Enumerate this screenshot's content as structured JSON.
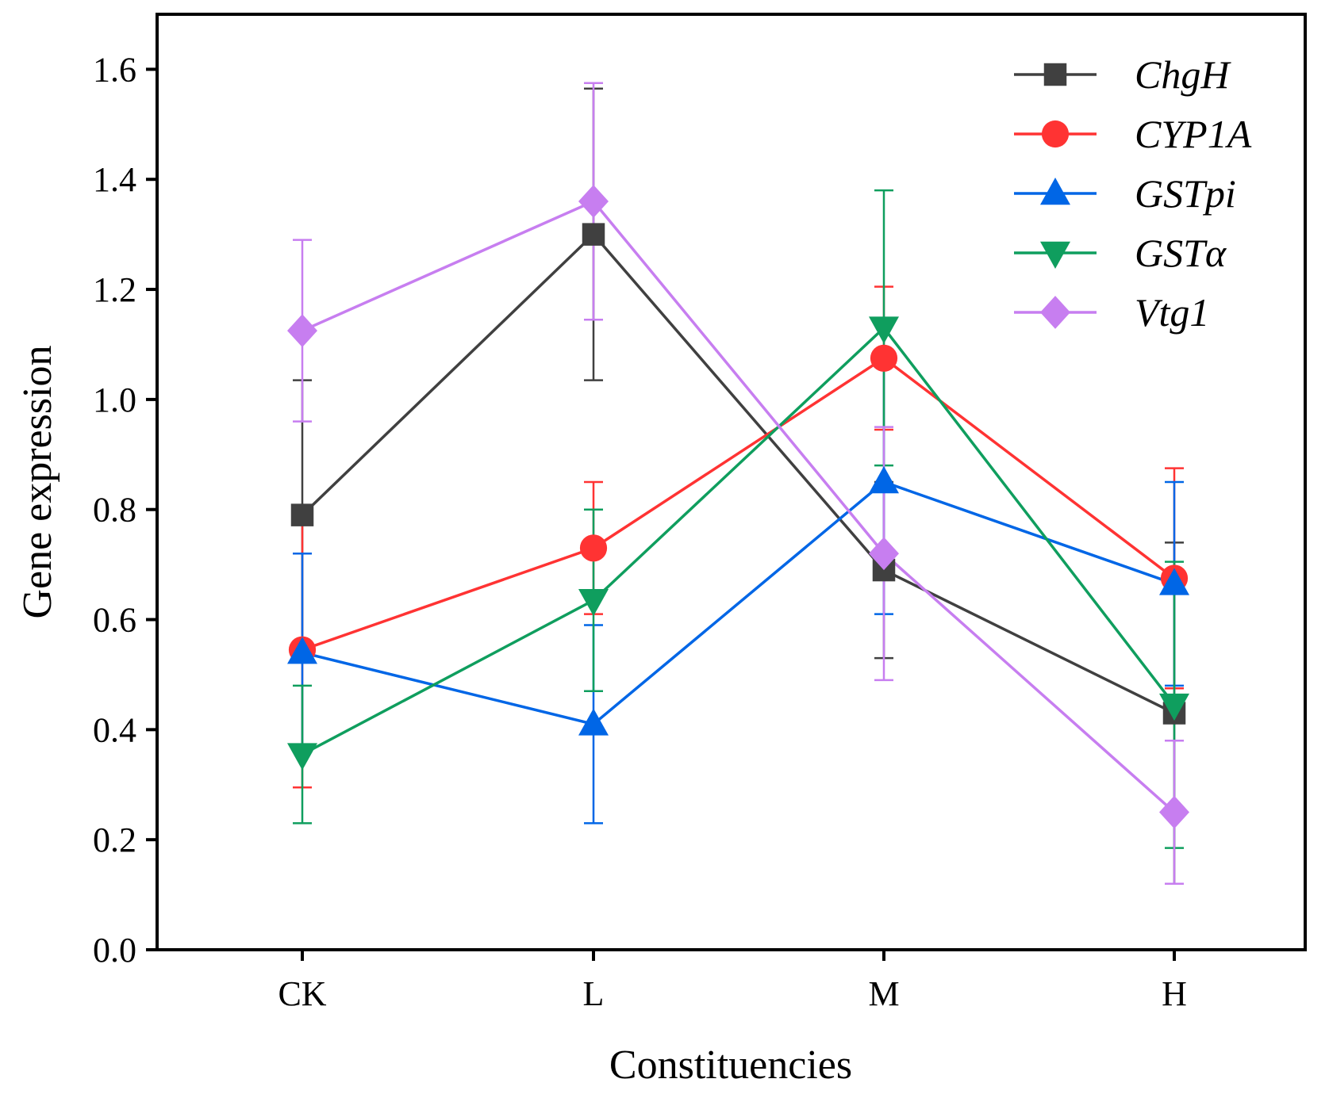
{
  "chart_data": {
    "type": "line",
    "title": "",
    "xlabel": "Constituencies",
    "ylabel": "Gene expression",
    "categories": [
      "CK",
      "L",
      "M",
      "H"
    ],
    "ylim": [
      0,
      1.7
    ],
    "yticks": [
      0.0,
      0.2,
      0.4,
      0.6,
      0.8,
      1.0,
      1.2,
      1.4,
      1.6
    ],
    "ytick_labels": [
      "0.0",
      "0.2",
      "0.4",
      "0.6",
      "0.8",
      "1.0",
      "1.2",
      "1.4",
      "1.6"
    ],
    "grid": false,
    "legend_position": "top-right",
    "series": [
      {
        "name": "ChgH",
        "color": "#404040",
        "marker": "square",
        "values": [
          0.79,
          1.3,
          0.69,
          0.43
        ],
        "errors": [
          0.245,
          0.265,
          0.16,
          0.31
        ]
      },
      {
        "name": "CYP1A",
        "color": "#ff3333",
        "marker": "circle",
        "values": [
          0.545,
          0.73,
          1.075,
          0.675
        ],
        "errors": [
          0.25,
          0.12,
          0.13,
          0.2
        ]
      },
      {
        "name": "GSTpi",
        "color": "#0066e6",
        "marker": "triangle-up",
        "values": [
          0.54,
          0.41,
          0.85,
          0.665
        ],
        "errors": [
          0.18,
          0.18,
          0.24,
          0.185
        ]
      },
      {
        "name": "GSTα",
        "color": "#0f9e5e",
        "marker": "triangle-down",
        "values": [
          0.355,
          0.635,
          1.13,
          0.445
        ],
        "errors": [
          0.125,
          0.165,
          0.25,
          0.26
        ]
      },
      {
        "name": "Vtg1",
        "color": "#c77ef0",
        "marker": "diamond",
        "values": [
          1.125,
          1.36,
          0.72,
          0.25
        ],
        "errors": [
          0.165,
          0.215,
          0.23,
          0.13
        ]
      }
    ]
  }
}
